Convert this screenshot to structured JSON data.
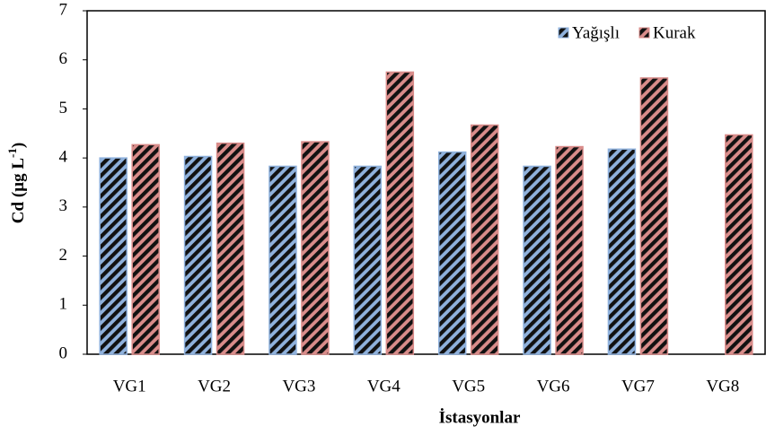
{
  "chart_data": {
    "type": "bar",
    "x_label": "İstasyonlar",
    "y_label": [
      "Cd (µg L",
      "-1",
      ")"
    ],
    "categories": [
      "VG1",
      "VG2",
      "VG3",
      "VG4",
      "VG5",
      "VG6",
      "VG7",
      "VG8"
    ],
    "series": [
      {
        "name": "Yağışlı",
        "color": "#8fb1dc",
        "values": [
          4.0,
          4.03,
          3.83,
          3.83,
          4.12,
          3.83,
          4.18,
          null
        ]
      },
      {
        "name": "Kurak",
        "color": "#d98c8a",
        "values": [
          4.27,
          4.3,
          4.33,
          5.75,
          4.67,
          4.23,
          5.63,
          4.47
        ]
      }
    ],
    "ylim": [
      0,
      7
    ],
    "yticks": [
      0,
      1,
      2,
      3,
      4,
      5,
      6,
      7
    ],
    "hatch": true,
    "legend": "top-right"
  }
}
